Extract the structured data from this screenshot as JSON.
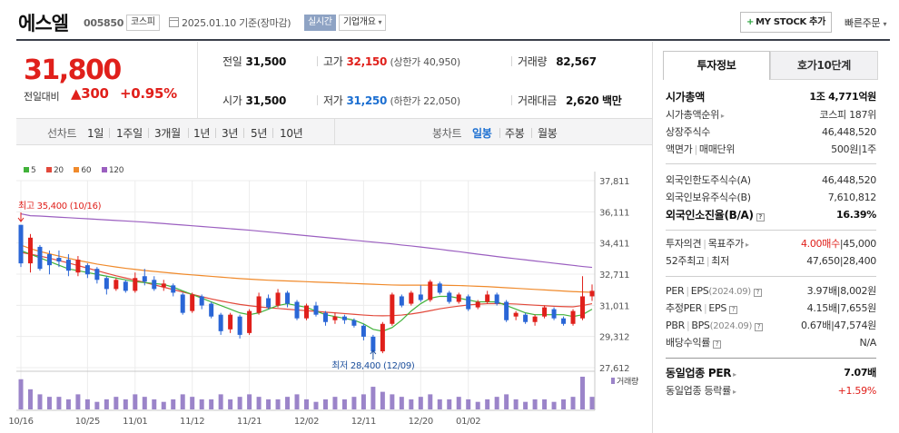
{
  "header": {
    "name": "에스엘",
    "code": "005850",
    "market_tag": "코스피",
    "date_text": "2025.01.10 기준(장마감)",
    "realtime_tag": "실시간",
    "corp_tag": "기업개요",
    "mystock_label": "MY STOCK 추가",
    "quick_order": "빠른주문",
    "calendar_icon": "calendar-icon"
  },
  "price": {
    "current": "31,800",
    "prev_label": "전일대비",
    "change_symbol": "▲",
    "change": "300",
    "change_pct": "+0.95%",
    "color_up": "#e0201b"
  },
  "stats": {
    "prev_close_label": "전일",
    "prev_close": "31,500",
    "high_label": "고가",
    "high": "32,150",
    "upper_limit": "(상한가 40,950)",
    "volume_label": "거래량",
    "volume": "82,567",
    "open_label": "시가",
    "open": "31,500",
    "low_label": "저가",
    "low": "31,250",
    "lower_limit": "(하한가 22,050)",
    "value_label": "거래대금",
    "value": "2,620",
    "value_unit": "백만"
  },
  "range_tabs": {
    "line_chart": "선차트",
    "items": [
      "1일",
      "1주일",
      "3개월",
      "1년",
      "3년",
      "5년",
      "10년"
    ],
    "candle_chart": "봉차트",
    "candle_items": [
      "일봉",
      "주봉",
      "월봉"
    ],
    "active_candle": "일봉"
  },
  "legend": [
    {
      "label": "5",
      "color": "#41b23a"
    },
    {
      "label": "20",
      "color": "#e2493b"
    },
    {
      "label": "60",
      "color": "#f08a2b"
    },
    {
      "label": "120",
      "color": "#9b5fc0"
    }
  ],
  "chart_data": {
    "type": "candlestick",
    "y_ticks": [
      "37,811",
      "36,111",
      "34,411",
      "32,711",
      "31,011",
      "29,312",
      "27,612"
    ],
    "ylim": [
      27612,
      37811
    ],
    "x_labels": [
      "10/16",
      "10/25",
      "11/01",
      "11/12",
      "11/21",
      "12/02",
      "12/11",
      "12/20",
      "01/02"
    ],
    "x_label_index": [
      0,
      7,
      12,
      18,
      24,
      30,
      36,
      42,
      47
    ],
    "high_annotation": "최고 35,400 (10/16)",
    "low_annotation": "최저 28,400 (12/09)",
    "volume_label": "거래량",
    "candles": [
      [
        35400,
        33300,
        35400,
        33100
      ],
      [
        33300,
        34700,
        34900,
        32800
      ],
      [
        34200,
        33000,
        34300,
        32900
      ],
      [
        33800,
        33200,
        34000,
        32700
      ],
      [
        33600,
        33400,
        34000,
        33100
      ],
      [
        33500,
        32900,
        33800,
        32600
      ],
      [
        32800,
        33500,
        33700,
        32600
      ],
      [
        33200,
        32700,
        33300,
        32500
      ],
      [
        33000,
        32400,
        33100,
        32200
      ],
      [
        32500,
        31900,
        32600,
        31600
      ],
      [
        31900,
        32400,
        32500,
        31800
      ],
      [
        32300,
        31800,
        32400,
        31700
      ],
      [
        31800,
        32500,
        32800,
        31700
      ],
      [
        32600,
        32300,
        33000,
        32100
      ],
      [
        32400,
        31900,
        32600,
        31800
      ],
      [
        32000,
        32200,
        32400,
        31800
      ],
      [
        32100,
        31700,
        32200,
        31500
      ],
      [
        31600,
        30600,
        31700,
        30500
      ],
      [
        30700,
        31600,
        31700,
        30600
      ],
      [
        31500,
        31000,
        31600,
        30800
      ],
      [
        31100,
        30400,
        31200,
        30300
      ],
      [
        30500,
        29600,
        30600,
        29400
      ],
      [
        29700,
        30500,
        30600,
        29500
      ],
      [
        30400,
        29400,
        30500,
        29200
      ],
      [
        29500,
        30700,
        30800,
        29400
      ],
      [
        30600,
        31500,
        31700,
        30500
      ],
      [
        31400,
        30900,
        31600,
        30800
      ],
      [
        31000,
        31700,
        31900,
        30900
      ],
      [
        31700,
        31100,
        31800,
        30900
      ],
      [
        31200,
        30300,
        31300,
        30200
      ],
      [
        30300,
        31000,
        31100,
        30200
      ],
      [
        31000,
        30500,
        31200,
        30400
      ],
      [
        30600,
        30100,
        30700,
        29900
      ],
      [
        30200,
        30400,
        30600,
        30000
      ],
      [
        30400,
        30200,
        30500,
        30000
      ],
      [
        30200,
        29900,
        30300,
        29800
      ],
      [
        29900,
        29300,
        30000,
        29100
      ],
      [
        29300,
        28500,
        29400,
        28400
      ],
      [
        28500,
        30000,
        30100,
        28400
      ],
      [
        30000,
        31600,
        31700,
        29900
      ],
      [
        31500,
        31000,
        31600,
        30900
      ],
      [
        31100,
        31700,
        31800,
        31000
      ],
      [
        31600,
        31300,
        32100,
        31200
      ],
      [
        31300,
        32300,
        32400,
        31200
      ],
      [
        32200,
        31700,
        32300,
        31600
      ],
      [
        31700,
        31200,
        31800,
        31100
      ],
      [
        31200,
        31600,
        31700,
        31100
      ],
      [
        31500,
        30800,
        31600,
        30700
      ],
      [
        30900,
        31200,
        31300,
        30800
      ],
      [
        31200,
        31600,
        31800,
        31100
      ],
      [
        31600,
        31100,
        31700,
        31000
      ],
      [
        31200,
        30200,
        31300,
        30100
      ],
      [
        30400,
        30600,
        30700,
        30200
      ],
      [
        30500,
        30100,
        30600,
        30000
      ],
      [
        30100,
        30400,
        30500,
        29900
      ],
      [
        30400,
        30900,
        31000,
        30300
      ],
      [
        30800,
        30300,
        30900,
        30200
      ],
      [
        30300,
        30000,
        30400,
        29900
      ],
      [
        30000,
        30700,
        30800,
        29900
      ],
      [
        30300,
        31500,
        32600,
        30200
      ],
      [
        31500,
        31800,
        32150,
        31250
      ]
    ],
    "volume": [
      6,
      4,
      3,
      2.5,
      2.5,
      2,
      3,
      2,
      1.5,
      2,
      2.5,
      2,
      3,
      2.5,
      2,
      1.5,
      2,
      3,
      2.5,
      2,
      2,
      3,
      2,
      2.5,
      3,
      2.5,
      2,
      2,
      2.5,
      3,
      2,
      1.5,
      2,
      2.5,
      2,
      2.5,
      3,
      4.5,
      3.5,
      3,
      2.5,
      2,
      2.5,
      3,
      2,
      2,
      2.5,
      2,
      1.5,
      2,
      2.5,
      3,
      2,
      1.5,
      2,
      2,
      1.5,
      2,
      2.5,
      6.5,
      2.5
    ],
    "ma120": [
      36000,
      35900,
      35880,
      35850,
      35820,
      35790,
      35760,
      35730,
      35700,
      35670,
      35640,
      35610,
      35580,
      35550,
      35510,
      35470,
      35430,
      35390,
      35350,
      35310,
      35270,
      35230,
      35190,
      35150,
      35110,
      35060,
      35010,
      34960,
      34910,
      34860,
      34810,
      34760,
      34710,
      34660,
      34610,
      34560,
      34510,
      34460,
      34410,
      34360,
      34300,
      34250,
      34190,
      34130,
      34070,
      34000,
      33940,
      33870,
      33800,
      33740,
      33670,
      33610,
      33550,
      33490,
      33430,
      33370,
      33310,
      33250,
      33190,
      33130,
      33080
    ],
    "ma60": [
      34300,
      34100,
      33950,
      33820,
      33700,
      33580,
      33460,
      33360,
      33260,
      33180,
      33100,
      33030,
      32970,
      32910,
      32860,
      32810,
      32760,
      32710,
      32670,
      32630,
      32590,
      32550,
      32510,
      32470,
      32440,
      32410,
      32380,
      32360,
      32340,
      32320,
      32300,
      32280,
      32260,
      32240,
      32220,
      32200,
      32180,
      32160,
      32140,
      32120,
      32110,
      32110,
      32110,
      32110,
      32110,
      32100,
      32090,
      32070,
      32050,
      32030,
      32000,
      31970,
      31940,
      31910,
      31880,
      31850,
      31820,
      31790,
      31760,
      31740,
      31720
    ],
    "ma20": [
      33900,
      33800,
      33700,
      33580,
      33450,
      33320,
      33180,
      33040,
      32900,
      32760,
      32620,
      32500,
      32380,
      32260,
      32130,
      32000,
      31870,
      31740,
      31610,
      31480,
      31360,
      31250,
      31150,
      31060,
      30990,
      30930,
      30880,
      30840,
      30800,
      30760,
      30720,
      30680,
      30640,
      30600,
      30560,
      30520,
      30480,
      30450,
      30440,
      30450,
      30480,
      30540,
      30620,
      30720,
      30820,
      30900,
      30970,
      31030,
      31070,
      31100,
      31110,
      31100,
      31080,
      31050,
      31020,
      30990,
      30960,
      30940,
      30930,
      31000,
      31100
    ],
    "ma5": [
      34000,
      33800,
      33600,
      33400,
      33200,
      33000,
      32900,
      32800,
      32700,
      32600,
      32500,
      32400,
      32300,
      32250,
      32200,
      32150,
      32000,
      31800,
      31600,
      31400,
      31200,
      31000,
      30800,
      30600,
      30500,
      30600,
      30800,
      31000,
      31100,
      31000,
      30900,
      30700,
      30500,
      30400,
      30300,
      30200,
      30000,
      29700,
      29600,
      29800,
      30200,
      30700,
      31100,
      31400,
      31500,
      31500,
      31400,
      31300,
      31200,
      31200,
      31200,
      31000,
      30800,
      30600,
      30500,
      30500,
      30500,
      30500,
      30400,
      30500,
      30800
    ]
  },
  "tabs": {
    "invest": "투자정보",
    "hoga": "호가10단계"
  },
  "info": {
    "market_cap_label": "시가총액",
    "market_cap_val": "1조 4,771억원",
    "cap_rank_label": "시가총액순위",
    "cap_rank_val": "코스피 187위",
    "shares_label": "상장주식수",
    "shares_val": "46,448,520",
    "par_label": "액면가",
    "trade_unit_label": "매매단위",
    "par_val": "500원",
    "unit_val": "1주",
    "foreign_limit_label": "외국인한도주식수(A)",
    "foreign_limit_val": "46,448,520",
    "foreign_hold_label": "외국인보유주식수(B)",
    "foreign_hold_val": "7,610,812",
    "foreign_ratio_label": "외국인소진율(B/A)",
    "foreign_ratio_val": "16.39%",
    "opinion_label": "투자의견",
    "target_label": "목표주가",
    "opinion_val": "4.00매수",
    "target_val": "45,000",
    "wk52_label": "52주최고",
    "wk52_low_label": "최저",
    "wk52_high": "47,650",
    "wk52_low": "28,400",
    "per_label": "PER",
    "eps_label": "EPS",
    "per_date": "(2024.09)",
    "per_val": "3.97배",
    "eps_val": "8,002원",
    "est_per_label": "추정PER",
    "est_eps_label": "EPS",
    "est_per_val": "4.15배",
    "est_eps_val": "7,655원",
    "pbr_label": "PBR",
    "bps_label": "BPS",
    "pbr_date": "(2024.09)",
    "pbr_val": "0.67배",
    "bps_val": "47,574원",
    "div_label": "배당수익률",
    "div_val": "N/A",
    "sector_per_label": "동일업종 PER",
    "sector_per_val": "7.07배",
    "sector_rate_label": "동일업종 등락률",
    "sector_rate_val": "+1.59%"
  }
}
